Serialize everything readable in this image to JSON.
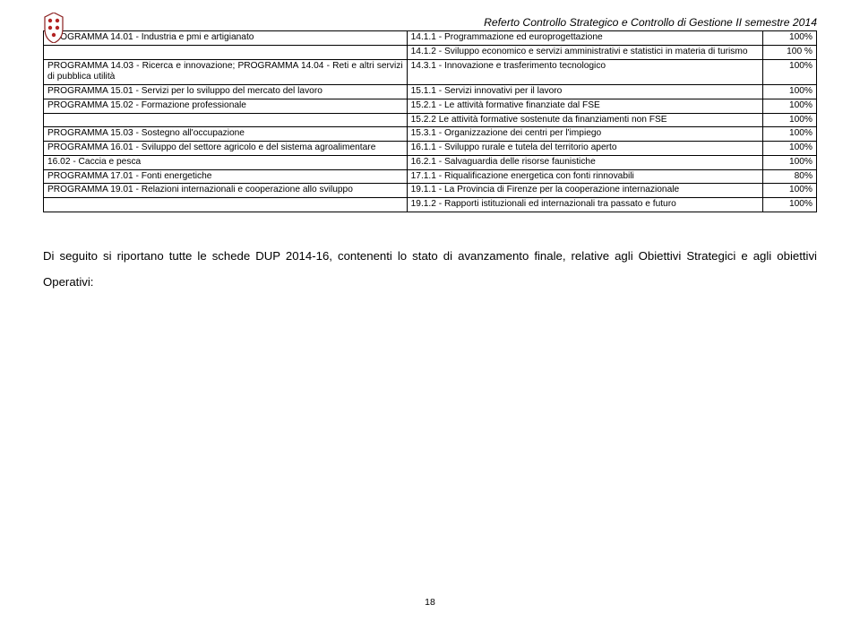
{
  "header": {
    "title": "Referto Controllo Strategico e Controllo di Gestione II semestre 2014"
  },
  "table": {
    "rows": [
      {
        "l": "PROGRAMMA 14.01 - Industria e pmi e artigianato",
        "lrows": 1,
        "r": "14.1.1 - Programmazione ed europrogettazione",
        "p": "100%"
      },
      {
        "r": "14.1.2 - Sviluppo economico e servizi amministrativi e statistici in materia di turismo",
        "p": "100 %"
      },
      {
        "l": "PROGRAMMA 14.03 - Ricerca e innovazione; PROGRAMMA 14.04 - Reti e altri servizi di pubblica utilità",
        "lrows": 1,
        "r": "14.3.1 - Innovazione e trasferimento tecnologico",
        "p": "100%"
      },
      {
        "l": "PROGRAMMA 15.01 - Servizi per lo sviluppo del mercato del lavoro",
        "lrows": 1,
        "r": "15.1.1 - Servizi innovativi per il lavoro",
        "p": "100%"
      },
      {
        "l": "PROGRAMMA 15.02 - Formazione professionale",
        "lrows": 1,
        "r": "15.2.1 - Le attività formative finanziate dal FSE",
        "p": "100%"
      },
      {
        "r": "15.2.2 Le attività formative sostenute da finanziamenti non FSE",
        "p": "100%"
      },
      {
        "l": "PROGRAMMA 15.03 - Sostegno all'occupazione",
        "lrows": 1,
        "r": "15.3.1 - Organizzazione dei centri per l'impiego",
        "p": "100%"
      },
      {
        "l": "PROGRAMMA 16.01 - Sviluppo del settore agricolo e del sistema agroalimentare",
        "lrows": 1,
        "r": "16.1.1 - Sviluppo rurale e tutela del territorio aperto",
        "p": "100%"
      },
      {
        "l": "16.02 - Caccia e pesca",
        "lrows": 1,
        "r": "16.2.1 - Salvaguardia delle risorse faunistiche",
        "p": "100%"
      },
      {
        "l": "PROGRAMMA 17.01 - Fonti energetiche",
        "lrows": 1,
        "r": "17.1.1 - Riqualificazione energetica con fonti rinnovabili",
        "p": "80%"
      },
      {
        "l": "PROGRAMMA 19.01 - Relazioni internazionali e cooperazione allo sviluppo",
        "lrows": 1,
        "r": "19.1.1 - La Provincia di Firenze per la cooperazione internazionale",
        "p": "100%"
      },
      {
        "r": "19.1.2 - Rapporti istituzionali ed internazionali tra passato e futuro",
        "p": "100%"
      }
    ]
  },
  "body_text": "Di seguito si riportano tutte le schede DUP 2014-16, contenenti lo stato di avanzamento finale, relative agli Obiettivi Strategici e agli obiettivi Operativi:",
  "page_number": "18"
}
